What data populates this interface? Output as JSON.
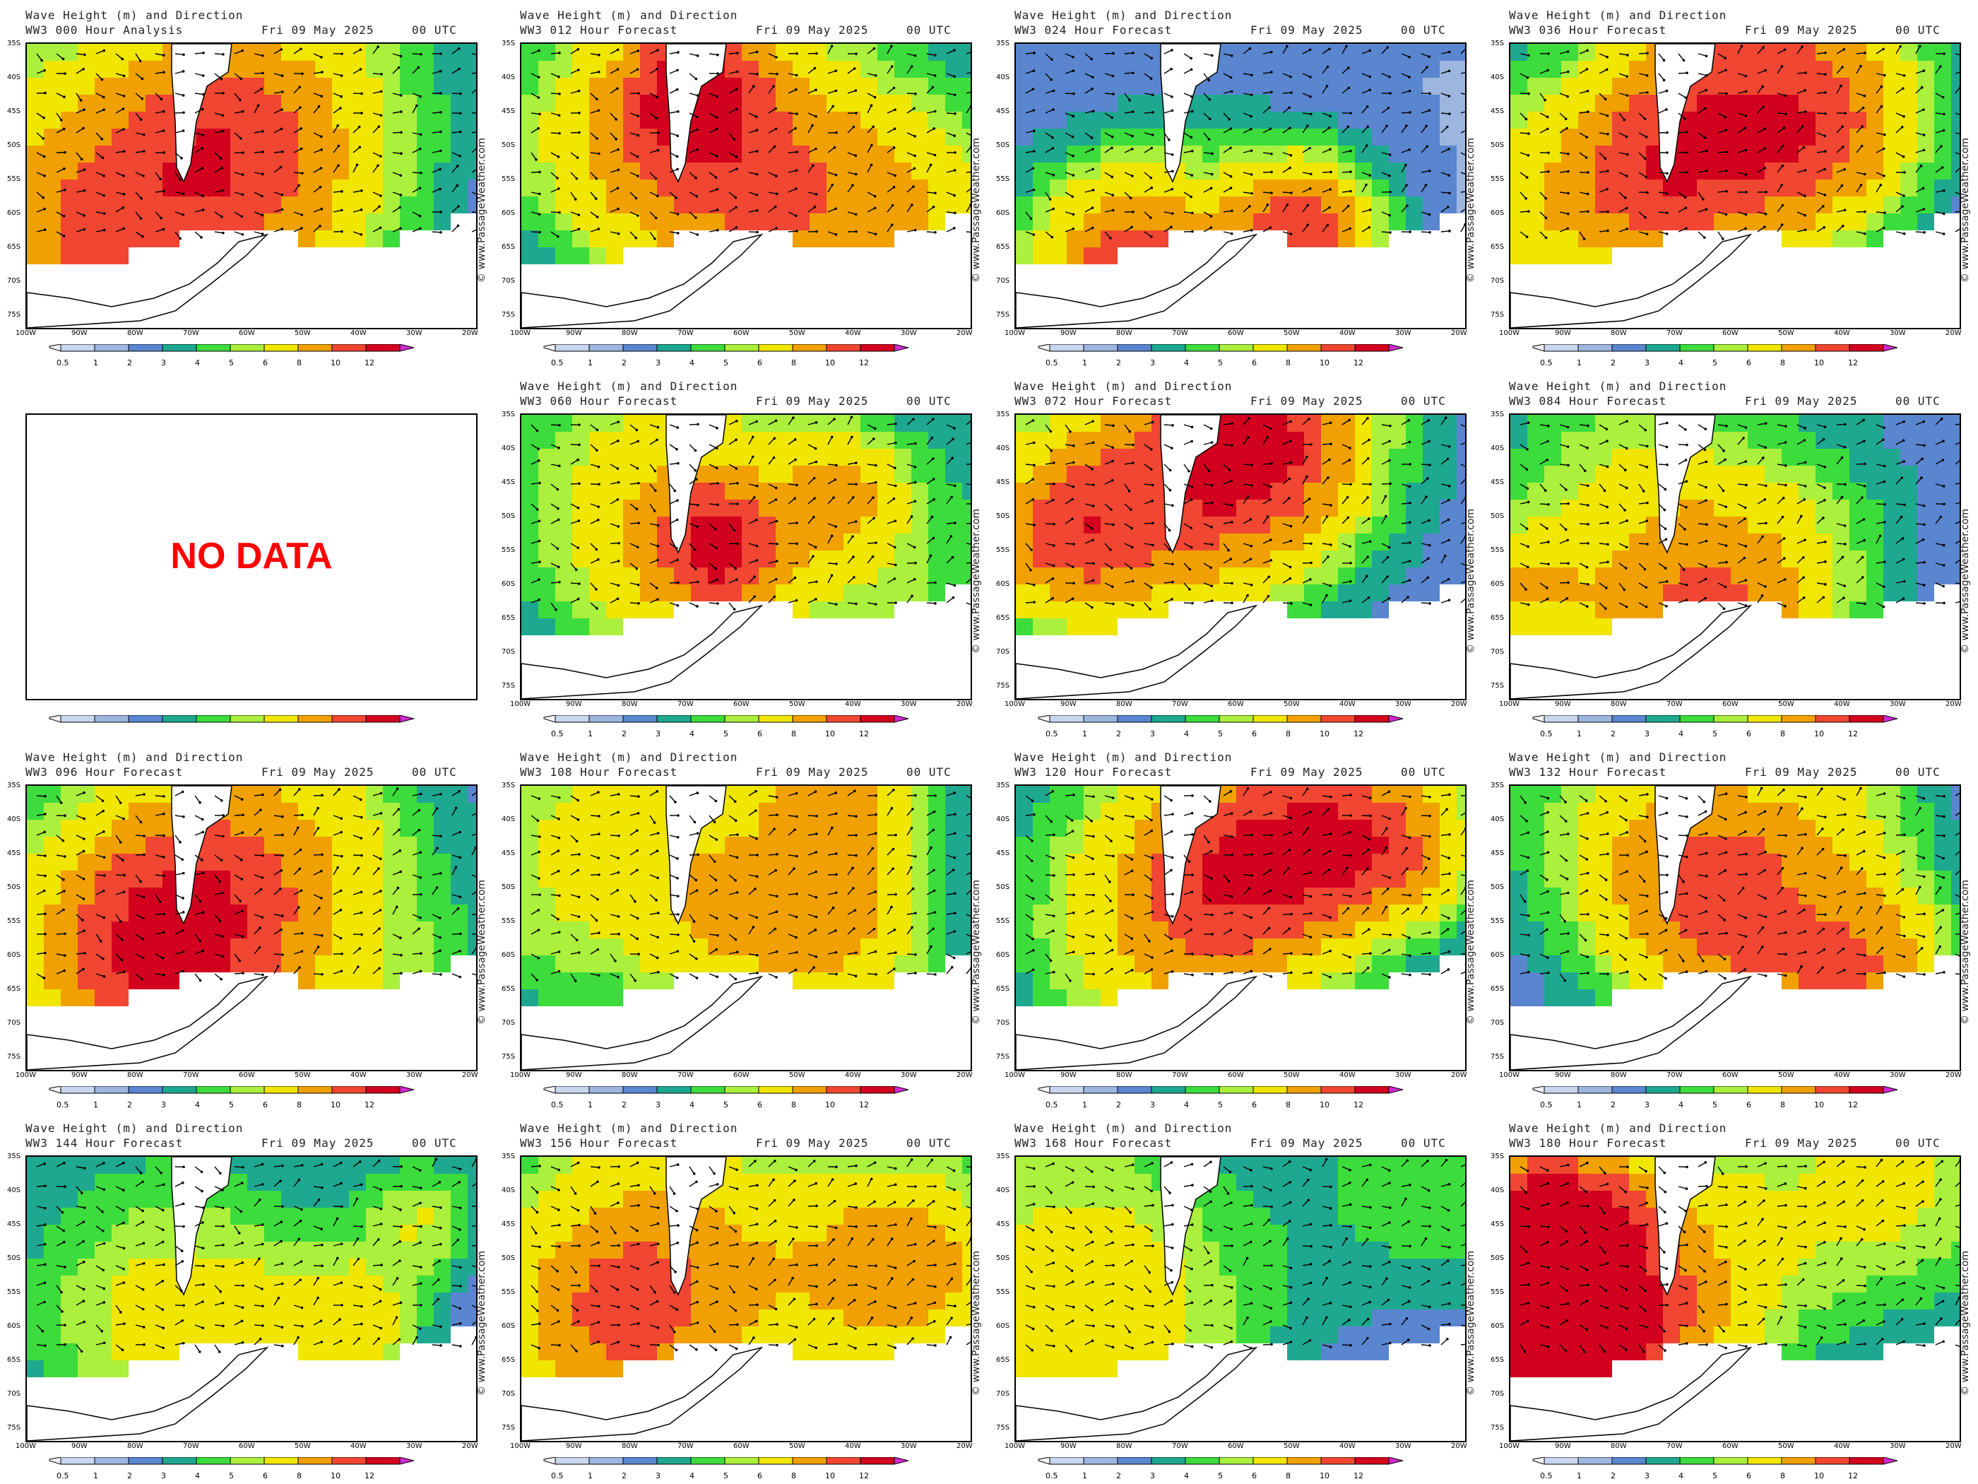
{
  "header_title": "Wave Height (m) and Direction",
  "header_date": "Fri 09 May 2025",
  "header_time": "00 UTC",
  "credit": "© www.PassageWeather.com",
  "lat_labels": [
    "35S",
    "40S",
    "45S",
    "50S",
    "55S",
    "60S",
    "65S",
    "70S",
    "75S"
  ],
  "lon_labels": [
    "100W",
    "90W",
    "80W",
    "70W",
    "60W",
    "50W",
    "40W",
    "30W",
    "20W"
  ],
  "scale_ticks": [
    "0.5",
    "1",
    "2",
    "3",
    "4",
    "5",
    "6",
    "8",
    "10",
    "12"
  ],
  "scale_colors": [
    "#f4f4fc",
    "#c8d6ee",
    "#9cb6e0",
    "#5a86d0",
    "#1ea890",
    "#3cdc3c",
    "#aaf03c",
    "#f0e600",
    "#f0a000",
    "#f04632",
    "#d2001e",
    "#d228d2"
  ],
  "nodata_text": "NO DATA",
  "panels": [
    {
      "name": "panel-000",
      "forecast": "WW3 000 Hour Analysis",
      "seed": 1,
      "nodata": false
    },
    {
      "name": "panel-012",
      "forecast": "WW3 012 Hour Forecast",
      "seed": 2,
      "nodata": false
    },
    {
      "name": "panel-024",
      "forecast": "WW3 024 Hour Forecast",
      "seed": 3,
      "nodata": false
    },
    {
      "name": "panel-036",
      "forecast": "WW3 036 Hour Forecast",
      "seed": 4,
      "nodata": false
    },
    {
      "name": "panel-048",
      "forecast": "",
      "seed": 5,
      "nodata": true
    },
    {
      "name": "panel-060",
      "forecast": "WW3 060 Hour Forecast",
      "seed": 6,
      "nodata": false
    },
    {
      "name": "panel-072",
      "forecast": "WW3 072 Hour Forecast",
      "seed": 7,
      "nodata": false
    },
    {
      "name": "panel-084",
      "forecast": "WW3 084 Hour Forecast",
      "seed": 8,
      "nodata": false
    },
    {
      "name": "panel-096",
      "forecast": "WW3 096 Hour Forecast",
      "seed": 9,
      "nodata": false
    },
    {
      "name": "panel-108",
      "forecast": "WW3 108 Hour Forecast",
      "seed": 10,
      "nodata": false
    },
    {
      "name": "panel-120",
      "forecast": "WW3 120 Hour Forecast",
      "seed": 11,
      "nodata": false
    },
    {
      "name": "panel-132",
      "forecast": "WW3 132 Hour Forecast",
      "seed": 12,
      "nodata": false
    },
    {
      "name": "panel-144",
      "forecast": "WW3 144 Hour Forecast",
      "seed": 13,
      "nodata": false
    },
    {
      "name": "panel-156",
      "forecast": "WW3 156 Hour Forecast",
      "seed": 14,
      "nodata": false
    },
    {
      "name": "panel-168",
      "forecast": "WW3 168 Hour Forecast",
      "seed": 15,
      "nodata": false
    },
    {
      "name": "panel-180",
      "forecast": "WW3 180 Hour Forecast",
      "seed": 16,
      "nodata": false
    }
  ]
}
